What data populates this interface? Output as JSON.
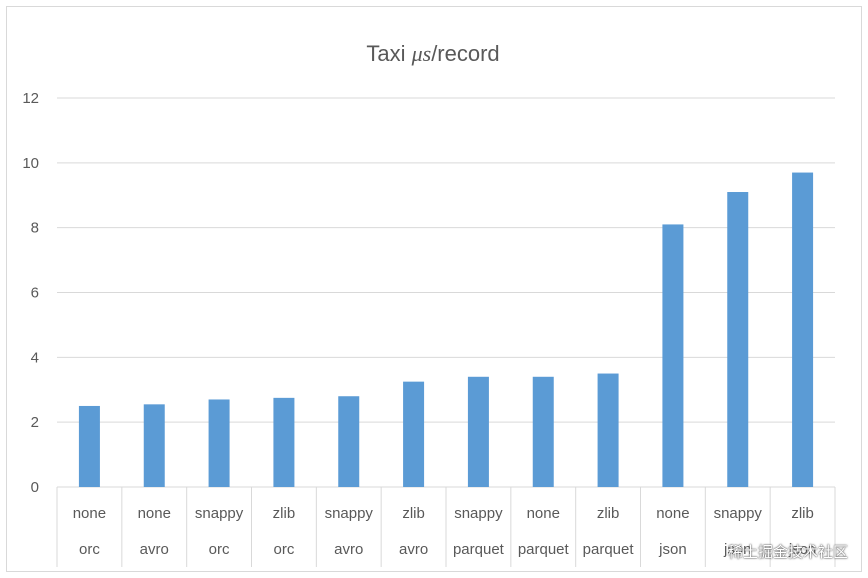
{
  "watermark": "稀土掘金技术社区",
  "chart_data": {
    "type": "bar",
    "title_prefix": "Taxi ",
    "title_unit": "μs",
    "title_suffix": "/record",
    "xlabel": "",
    "ylabel": "",
    "ylim": [
      0,
      12
    ],
    "yticks": [
      0,
      2,
      4,
      6,
      8,
      10,
      12
    ],
    "grid": true,
    "legend": "none",
    "bar_color": "#5b9bd5",
    "categories": [
      {
        "compression": "none",
        "format": "orc"
      },
      {
        "compression": "none",
        "format": "avro"
      },
      {
        "compression": "snappy",
        "format": "orc"
      },
      {
        "compression": "zlib",
        "format": "orc"
      },
      {
        "compression": "snappy",
        "format": "avro"
      },
      {
        "compression": "zlib",
        "format": "avro"
      },
      {
        "compression": "snappy",
        "format": "parquet"
      },
      {
        "compression": "none",
        "format": "parquet"
      },
      {
        "compression": "zlib",
        "format": "parquet"
      },
      {
        "compression": "none",
        "format": "json"
      },
      {
        "compression": "snappy",
        "format": "json"
      },
      {
        "compression": "zlib",
        "format": "json"
      }
    ],
    "values": [
      2.5,
      2.55,
      2.7,
      2.75,
      2.8,
      3.25,
      3.4,
      3.4,
      3.5,
      8.1,
      9.1,
      9.7
    ]
  }
}
